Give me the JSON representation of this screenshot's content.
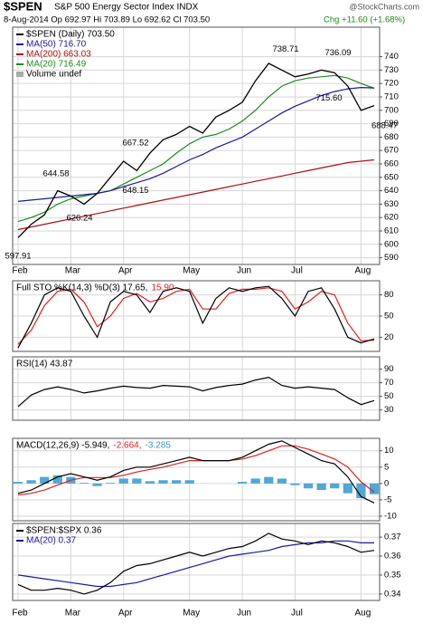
{
  "chart_data": [
    {
      "type": "line",
      "title": "$SPEN",
      "subtitle": "S&P 500 Energy Sector Index INDX",
      "source": "@StockCharts.com",
      "quote": "8-Aug-2014   Op 692.97  Hi 703.89  Lo 692.62  Cl 703.50",
      "change": "Chg +11.60 (+1.68%)",
      "volume_label": "Volume undef",
      "categories": [
        "Feb",
        null,
        null,
        null,
        "Mar",
        null,
        null,
        null,
        "Apr",
        null,
        null,
        null,
        null,
        "May",
        null,
        null,
        null,
        "Jun",
        null,
        null,
        null,
        "Jul",
        null,
        null,
        null,
        null,
        "Aug",
        null
      ],
      "series": [
        {
          "name": "$SPEN (Daily) 703.50",
          "color": "#000000",
          "values": [
            605,
            615,
            622,
            640,
            636,
            630,
            638,
            650,
            662,
            655,
            668,
            678,
            682,
            688,
            683,
            695,
            700,
            706,
            722,
            735,
            730,
            725,
            727,
            730,
            728,
            718,
            700,
            703.5
          ]
        },
        {
          "name": "MA(50) 716.70",
          "color": "#1a1a9a",
          "values": [
            632,
            633,
            634,
            635,
            636,
            637,
            638,
            640,
            643,
            646,
            649,
            653,
            658,
            663,
            667,
            672,
            676,
            680,
            686,
            692,
            698,
            703,
            707,
            711,
            714,
            716,
            717,
            716.7
          ]
        },
        {
          "name": "MA(200) 663.03",
          "color": "#b01010",
          "values": [
            611,
            613,
            615,
            617,
            619,
            621,
            623,
            625,
            627,
            629,
            631,
            633,
            635,
            637,
            639,
            641,
            643,
            645,
            647,
            649,
            651,
            653,
            655,
            657,
            659,
            661,
            662,
            663.03
          ]
        },
        {
          "name": "MA(20) 716.49",
          "color": "#1f8a1f",
          "values": [
            617,
            620,
            624,
            630,
            634,
            636,
            638,
            640,
            645,
            650,
            655,
            660,
            668,
            675,
            680,
            682,
            686,
            692,
            700,
            710,
            718,
            722,
            724,
            725,
            726,
            724,
            720,
            716.49
          ]
        }
      ],
      "ylim": [
        585,
        762
      ],
      "yticks": [
        590,
        600,
        610,
        620,
        630,
        640,
        650,
        660,
        670,
        680,
        690,
        700,
        710,
        720,
        730,
        740
      ],
      "annotations": [
        597.91,
        644.58,
        626.24,
        667.52,
        648.15,
        738.71,
        736.09,
        {
          "value": 715.6,
          "label": "715.60"
        },
        688.47
      ],
      "grid": true
    },
    {
      "type": "line",
      "series": [
        {
          "name": "Full STO %K(14,3) %D(3) 17.65,",
          "color": "#000000",
          "values": [
            5,
            40,
            80,
            90,
            85,
            50,
            20,
            70,
            85,
            80,
            55,
            85,
            90,
            85,
            40,
            75,
            90,
            85,
            90,
            92,
            75,
            50,
            85,
            90,
            60,
            20,
            12,
            17.65
          ]
        },
        {
          "name": "15.90",
          "color": "#e02020",
          "values": [
            10,
            30,
            65,
            85,
            88,
            70,
            35,
            50,
            75,
            82,
            70,
            75,
            85,
            88,
            60,
            60,
            82,
            88,
            88,
            90,
            85,
            60,
            70,
            85,
            80,
            40,
            15,
            15.9
          ]
        }
      ],
      "ylim": [
        0,
        100
      ],
      "yticks": [
        20,
        50,
        80
      ],
      "grid": true
    },
    {
      "type": "line",
      "series": [
        {
          "name": "RSI(14) 43.87",
          "color": "#000000",
          "values": [
            35,
            52,
            60,
            64,
            60,
            55,
            58,
            62,
            65,
            63,
            62,
            66,
            65,
            64,
            58,
            63,
            66,
            68,
            74,
            78,
            66,
            62,
            64,
            62,
            60,
            48,
            38,
            43.87
          ]
        }
      ],
      "ylim": [
        15,
        108
      ],
      "yticks": [
        30,
        50,
        70,
        90
      ],
      "grid": true
    },
    {
      "type": "line",
      "series": [
        {
          "name": "MACD(12,26,9) -5.949,",
          "color": "#000000",
          "values": [
            -3,
            -2,
            0,
            2,
            3,
            2,
            1,
            2,
            4,
            5,
            5,
            6,
            7,
            8,
            7,
            7,
            7,
            8,
            10,
            12,
            13,
            11,
            9,
            7,
            6,
            2,
            -4,
            -5.949
          ]
        },
        {
          "name": "-2.664,",
          "color": "#e02020",
          "values": [
            -3.5,
            -3,
            -2,
            -0.5,
            1,
            1.8,
            1.8,
            1.8,
            2.5,
            3.5,
            4.3,
            5,
            6,
            7,
            7,
            7,
            7,
            7.5,
            8.5,
            10,
            11.5,
            11.5,
            10.5,
            9,
            7.5,
            5,
            0.5,
            -2.664
          ]
        },
        {
          "name": "-3.285",
          "color": "#3399cc",
          "style": "bar",
          "values": [
            0.5,
            1,
            2,
            2.5,
            2,
            0.2,
            -0.8,
            0.2,
            1.5,
            1.5,
            0.7,
            1,
            1,
            1,
            0,
            0,
            0,
            0.5,
            1.5,
            2,
            1.5,
            -0.5,
            -1.5,
            -2,
            -1.5,
            -3,
            -4.5,
            -3.285
          ]
        }
      ],
      "ylim": [
        -11.4,
        13.8
      ],
      "yticks": [
        -10,
        -5,
        0,
        5,
        10
      ],
      "grid": true
    },
    {
      "type": "line",
      "categories": [
        "Feb",
        null,
        null,
        null,
        "Mar",
        null,
        null,
        null,
        "Apr",
        null,
        null,
        null,
        null,
        "May",
        null,
        null,
        null,
        "Jun",
        null,
        null,
        null,
        "Jul",
        null,
        null,
        null,
        null,
        "Aug",
        null
      ],
      "series": [
        {
          "name": "$SPEN:$SPX 0.36",
          "color": "#000000",
          "values": [
            0.345,
            0.342,
            0.342,
            0.343,
            0.342,
            0.34,
            0.342,
            0.346,
            0.352,
            0.355,
            0.356,
            0.358,
            0.36,
            0.362,
            0.36,
            0.362,
            0.364,
            0.365,
            0.368,
            0.372,
            0.369,
            0.368,
            0.366,
            0.368,
            0.367,
            0.365,
            0.362,
            0.363
          ]
        },
        {
          "name": "MA(20) 0.37",
          "color": "#1a1a9a",
          "values": [
            0.35,
            0.349,
            0.348,
            0.347,
            0.346,
            0.345,
            0.344,
            0.344,
            0.345,
            0.346,
            0.348,
            0.35,
            0.352,
            0.354,
            0.356,
            0.358,
            0.36,
            0.361,
            0.362,
            0.363,
            0.365,
            0.366,
            0.367,
            0.367,
            0.368,
            0.368,
            0.367,
            0.367
          ]
        }
      ],
      "ylim": [
        0.3366,
        0.3772
      ],
      "yticks": [
        0.34,
        0.35,
        0.36,
        0.37
      ],
      "grid": true
    }
  ]
}
